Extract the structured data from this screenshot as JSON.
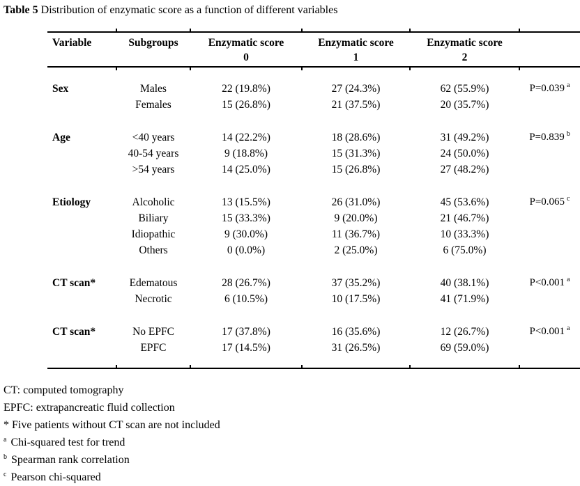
{
  "title": {
    "label": "Table 5",
    "text": " Distribution of enzymatic score as a function of different variables"
  },
  "table": {
    "headers": {
      "variable": "Variable",
      "subgroups": "Subgroups",
      "score_columns": [
        {
          "line1": "Enzymatic score",
          "line2": "0"
        },
        {
          "line1": "Enzymatic score",
          "line2": "1"
        },
        {
          "line1": "Enzymatic score",
          "line2": "2"
        }
      ]
    },
    "groups": [
      {
        "variable": "Sex",
        "p_value": "P=0.039",
        "p_sup": "a",
        "rows": [
          {
            "subgroup": "Males",
            "score0": "22 (19.8%)",
            "score1": "27 (24.3%)",
            "score2": "62 (55.9%)"
          },
          {
            "subgroup": "Females",
            "score0": "15 (26.8%)",
            "score1": "21 (37.5%)",
            "score2": "20 (35.7%)"
          }
        ]
      },
      {
        "variable": "Age",
        "p_value": "P=0.839",
        "p_sup": "b",
        "rows": [
          {
            "subgroup": "<40 years",
            "score0": "14 (22.2%)",
            "score1": "18 (28.6%)",
            "score2": "31 (49.2%)"
          },
          {
            "subgroup": "40-54 years",
            "score0": "9 (18.8%)",
            "score1": "15 (31.3%)",
            "score2": "24 (50.0%)"
          },
          {
            "subgroup": ">54 years",
            "score0": "14 (25.0%)",
            "score1": "15 (26.8%)",
            "score2": "27 (48.2%)"
          }
        ]
      },
      {
        "variable": "Etiology",
        "p_value": "P=0.065",
        "p_sup": "c",
        "rows": [
          {
            "subgroup": "Alcoholic",
            "score0": "13 (15.5%)",
            "score1": "26 (31.0%)",
            "score2": "45 (53.6%)"
          },
          {
            "subgroup": "Biliary",
            "score0": "15 (33.3%)",
            "score1": "9 (20.0%)",
            "score2": "21 (46.7%)"
          },
          {
            "subgroup": "Idiopathic",
            "score0": "9 (30.0%)",
            "score1": "11 (36.7%)",
            "score2": "10 (33.3%)"
          },
          {
            "subgroup": "Others",
            "score0": "0 (0.0%)",
            "score1": "2 (25.0%)",
            "score2": "6 (75.0%)"
          }
        ]
      },
      {
        "variable": "CT scan*",
        "p_value": "P<0.001",
        "p_sup": "a",
        "rows": [
          {
            "subgroup": "Edematous",
            "score0": "28 (26.7%)",
            "score1": "37 (35.2%)",
            "score2": "40 (38.1%)"
          },
          {
            "subgroup": "Necrotic",
            "score0": "6 (10.5%)",
            "score1": "10 (17.5%)",
            "score2": "41 (71.9%)"
          }
        ]
      },
      {
        "variable": "CT scan*",
        "p_value": "P<0.001",
        "p_sup": "a",
        "rows": [
          {
            "subgroup": "No EPFC",
            "score0": "17 (37.8%)",
            "score1": "16 (35.6%)",
            "score2": "12 (26.7%)"
          },
          {
            "subgroup": "EPFC",
            "score0": "17 (14.5%)",
            "score1": "31 (26.5%)",
            "score2": "69 (59.0%)"
          }
        ]
      }
    ]
  },
  "footnotes": [
    {
      "marker": "",
      "text": "CT: computed tomography"
    },
    {
      "marker": "",
      "text": "EPFC: extrapancreatic fluid collection"
    },
    {
      "marker": "",
      "text": "* Five patients without CT scan are not included"
    },
    {
      "marker": "a",
      "text": "Chi-squared test for trend"
    },
    {
      "marker": "b",
      "text": "Spearman rank correlation"
    },
    {
      "marker": "c",
      "text": "Pearson chi-squared"
    }
  ],
  "colors": {
    "text": "#000000",
    "background": "#ffffff",
    "rule": "#000000"
  }
}
